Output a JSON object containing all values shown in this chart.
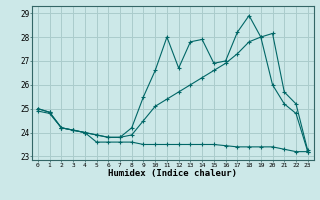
{
  "xlabel": "Humidex (Indice chaleur)",
  "background_color": "#cce8e8",
  "grid_color": "#aacccc",
  "line_color": "#006666",
  "xlim": [
    -0.5,
    23.5
  ],
  "ylim": [
    22.85,
    29.3
  ],
  "yticks": [
    23,
    24,
    25,
    26,
    27,
    28,
    29
  ],
  "xticks": [
    0,
    1,
    2,
    3,
    4,
    5,
    6,
    7,
    8,
    9,
    10,
    11,
    12,
    13,
    14,
    15,
    16,
    17,
    18,
    19,
    20,
    21,
    22,
    23
  ],
  "line1_x": [
    0,
    1,
    2,
    3,
    4,
    5,
    6,
    7,
    8,
    9,
    10,
    11,
    12,
    13,
    14,
    15,
    16,
    17,
    18,
    19,
    20,
    21,
    22,
    23
  ],
  "line1_y": [
    24.9,
    24.8,
    24.2,
    24.1,
    24.0,
    23.6,
    23.6,
    23.6,
    23.6,
    23.5,
    23.5,
    23.5,
    23.5,
    23.5,
    23.5,
    23.5,
    23.45,
    23.4,
    23.4,
    23.4,
    23.4,
    23.3,
    23.2,
    23.2
  ],
  "line2_x": [
    0,
    1,
    2,
    3,
    4,
    5,
    6,
    7,
    8,
    9,
    10,
    11,
    12,
    13,
    14,
    15,
    16,
    17,
    18,
    19,
    20,
    21,
    22,
    23
  ],
  "line2_y": [
    25.0,
    24.85,
    24.2,
    24.1,
    24.0,
    23.9,
    23.8,
    23.8,
    23.9,
    24.5,
    25.1,
    25.4,
    25.7,
    26.0,
    26.3,
    26.6,
    26.9,
    27.3,
    27.8,
    28.0,
    26.0,
    25.2,
    24.8,
    23.2
  ],
  "line3_x": [
    0,
    1,
    2,
    3,
    4,
    5,
    6,
    7,
    8,
    9,
    10,
    11,
    12,
    13,
    14,
    15,
    16,
    17,
    18,
    19,
    20,
    21,
    22,
    23
  ],
  "line3_y": [
    25.0,
    24.85,
    24.2,
    24.1,
    24.0,
    23.9,
    23.8,
    23.8,
    24.2,
    25.5,
    26.6,
    28.0,
    26.7,
    27.8,
    27.9,
    26.9,
    27.0,
    28.2,
    28.9,
    28.0,
    28.15,
    25.7,
    25.2,
    23.25
  ]
}
